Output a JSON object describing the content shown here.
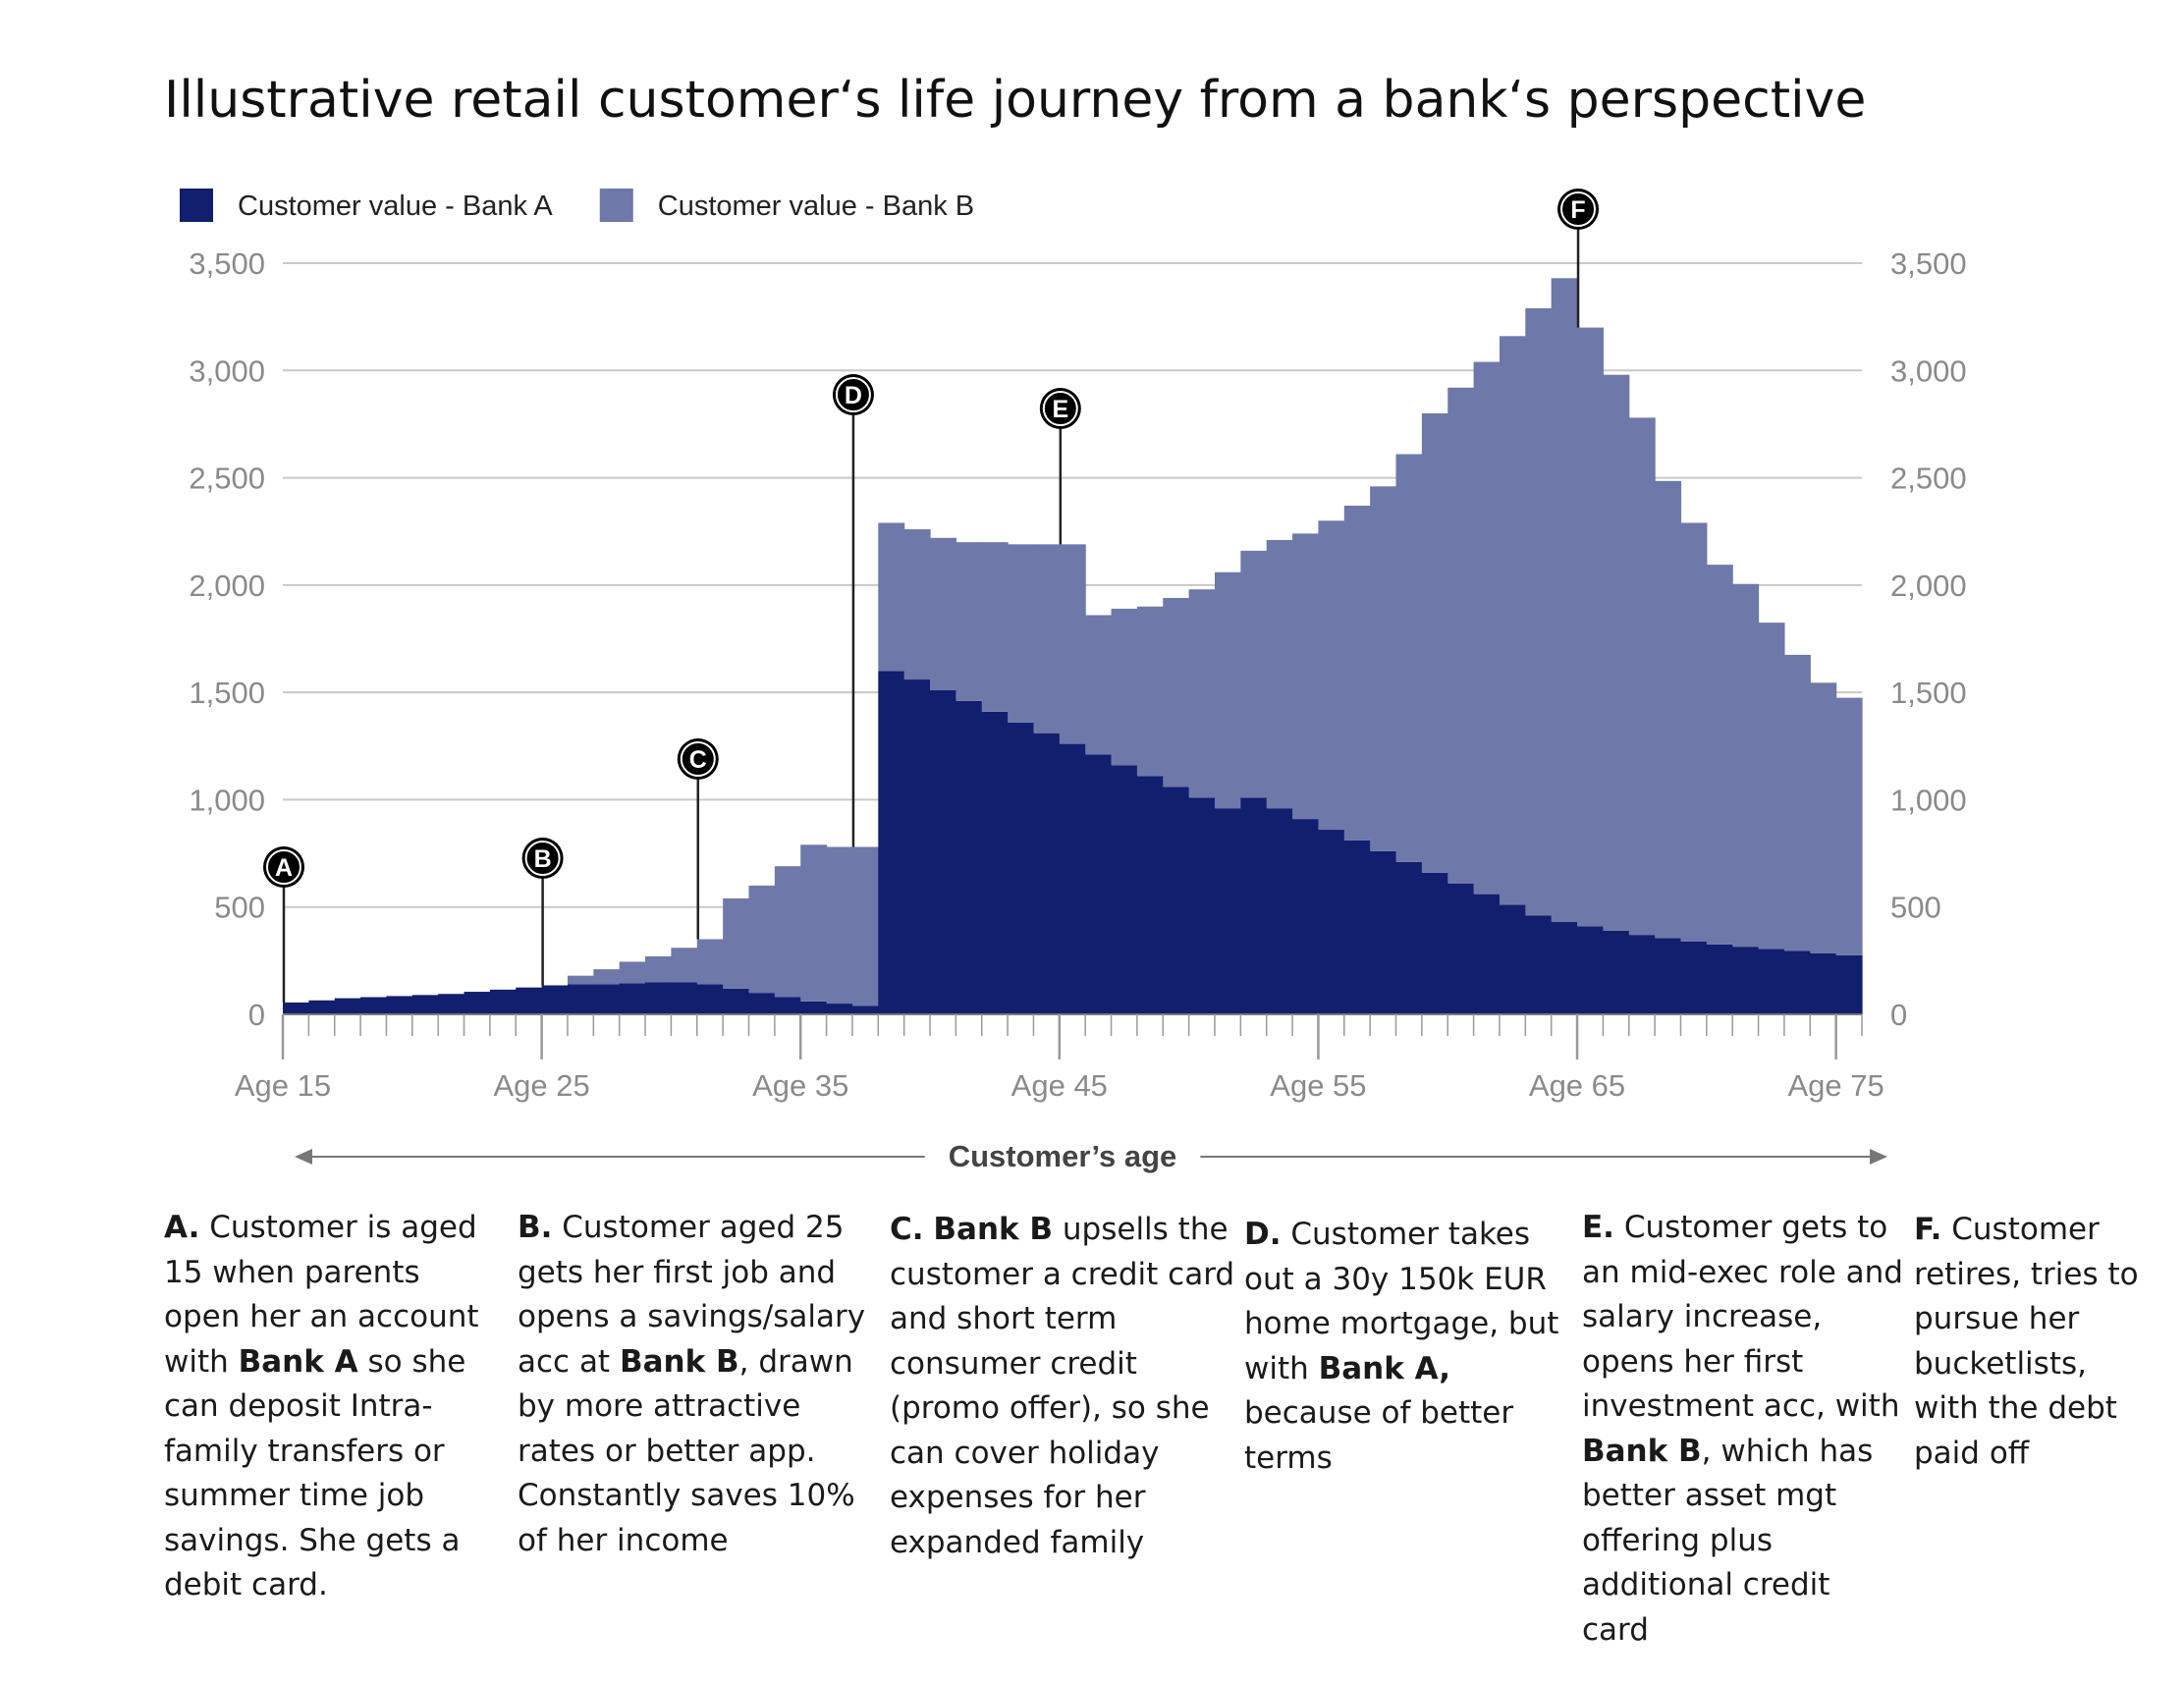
{
  "title": "Illustrative retail customer‘s life journey from a bank‘s perspective",
  "chart_data": {
    "type": "area",
    "title": "Illustrative retail customer‘s life journey from a bank‘s perspective",
    "xlabel": "Customer’s age",
    "ylabel": "",
    "xlim": [
      15,
      76
    ],
    "ylim": [
      0,
      3500
    ],
    "x_ticks": [
      15,
      25,
      35,
      45,
      55,
      65,
      75
    ],
    "x_tick_labels": [
      "Age 15",
      "Age 25",
      "Age 35",
      "Age 45",
      "Age 55",
      "Age 65",
      "Age 75"
    ],
    "y_ticks": [
      0,
      500,
      1000,
      1500,
      2000,
      2500,
      3000,
      3500
    ],
    "y_tick_labels": [
      "0",
      "500",
      "1,000",
      "1,500",
      "2,000",
      "2,500",
      "3,000",
      "3,500"
    ],
    "grid": true,
    "legend_position": "top-left",
    "stacked": true,
    "step": true,
    "x": [
      15,
      16,
      17,
      18,
      19,
      20,
      21,
      22,
      23,
      24,
      25,
      26,
      27,
      28,
      29,
      30,
      31,
      32,
      33,
      34,
      35,
      36,
      37,
      38,
      39,
      40,
      41,
      42,
      43,
      44,
      45,
      46,
      47,
      48,
      49,
      50,
      51,
      52,
      53,
      54,
      55,
      56,
      57,
      58,
      59,
      60,
      61,
      62,
      63,
      64,
      65,
      66,
      67,
      68,
      69,
      70,
      71,
      72,
      73,
      74,
      75
    ],
    "series": [
      {
        "name": "Customer value - Bank A",
        "color": "#121e6e",
        "values": [
          55,
          65,
          75,
          80,
          85,
          90,
          95,
          105,
          115,
          125,
          135,
          140,
          140,
          145,
          150,
          150,
          140,
          120,
          100,
          80,
          60,
          50,
          40,
          1600,
          1560,
          1510,
          1460,
          1410,
          1360,
          1310,
          1260,
          1210,
          1160,
          1110,
          1060,
          1010,
          960,
          1010,
          960,
          910,
          860,
          810,
          760,
          710,
          660,
          610,
          560,
          510,
          460,
          430,
          410,
          390,
          370,
          355,
          340,
          325,
          315,
          305,
          295,
          285,
          275
        ]
      },
      {
        "name": "Customer value - Bank B",
        "color": "#6e79aa",
        "values": [
          0,
          0,
          0,
          0,
          0,
          0,
          0,
          0,
          0,
          0,
          0,
          40,
          70,
          100,
          120,
          160,
          210,
          420,
          500,
          610,
          730,
          730,
          740,
          690,
          700,
          710,
          740,
          790,
          830,
          880,
          930,
          650,
          730,
          790,
          880,
          970,
          1100,
          1150,
          1250,
          1330,
          1440,
          1560,
          1700,
          1900,
          2140,
          2310,
          2480,
          2650,
          2830,
          3000,
          2790,
          2590,
          2410,
          2130,
          1950,
          1770,
          1690,
          1520,
          1380,
          1260,
          1200
        ]
      }
    ],
    "annotations": [
      {
        "marker": "A",
        "x": 15,
        "lead": "A.",
        "text": "Customer is aged 15 when parents open her an account with ",
        "bold": "Bank A",
        "rest": " so she can deposit Intra-family transfers or summer time job savings. She gets a debit card."
      },
      {
        "marker": "B",
        "x": 25,
        "lead": "B.",
        "text": "Customer aged 25 gets her first job and opens a savings/salary acc at ",
        "bold": "Bank B",
        "rest": ", drawn by more attractive rates or better app. Constantly saves 10% of her income"
      },
      {
        "marker": "C",
        "x": 31,
        "lead": "C.",
        "text": "",
        "bold": "Bank B",
        "rest": " upsells the customer a credit card and short term consumer credit (promo offer), so she can cover holiday expenses for her expanded family"
      },
      {
        "marker": "D",
        "x": 37,
        "lead": "D.",
        "text": "Customer takes out a 30y 150k EUR home mortgage, but with ",
        "bold": "Bank A,",
        "rest": " because of better terms"
      },
      {
        "marker": "E",
        "x": 45,
        "lead": "E.",
        "text": "Customer gets to an mid-exec role and salary increase, opens her first investment acc, with ",
        "bold": "Bank B",
        "rest": ", which has better asset mgt offering plus additional credit card"
      },
      {
        "marker": "F",
        "x": 65,
        "lead": "F.",
        "text": "Customer retires, tries to pursue her bucketlists, with the debt paid off",
        "bold": "",
        "rest": ""
      }
    ]
  }
}
